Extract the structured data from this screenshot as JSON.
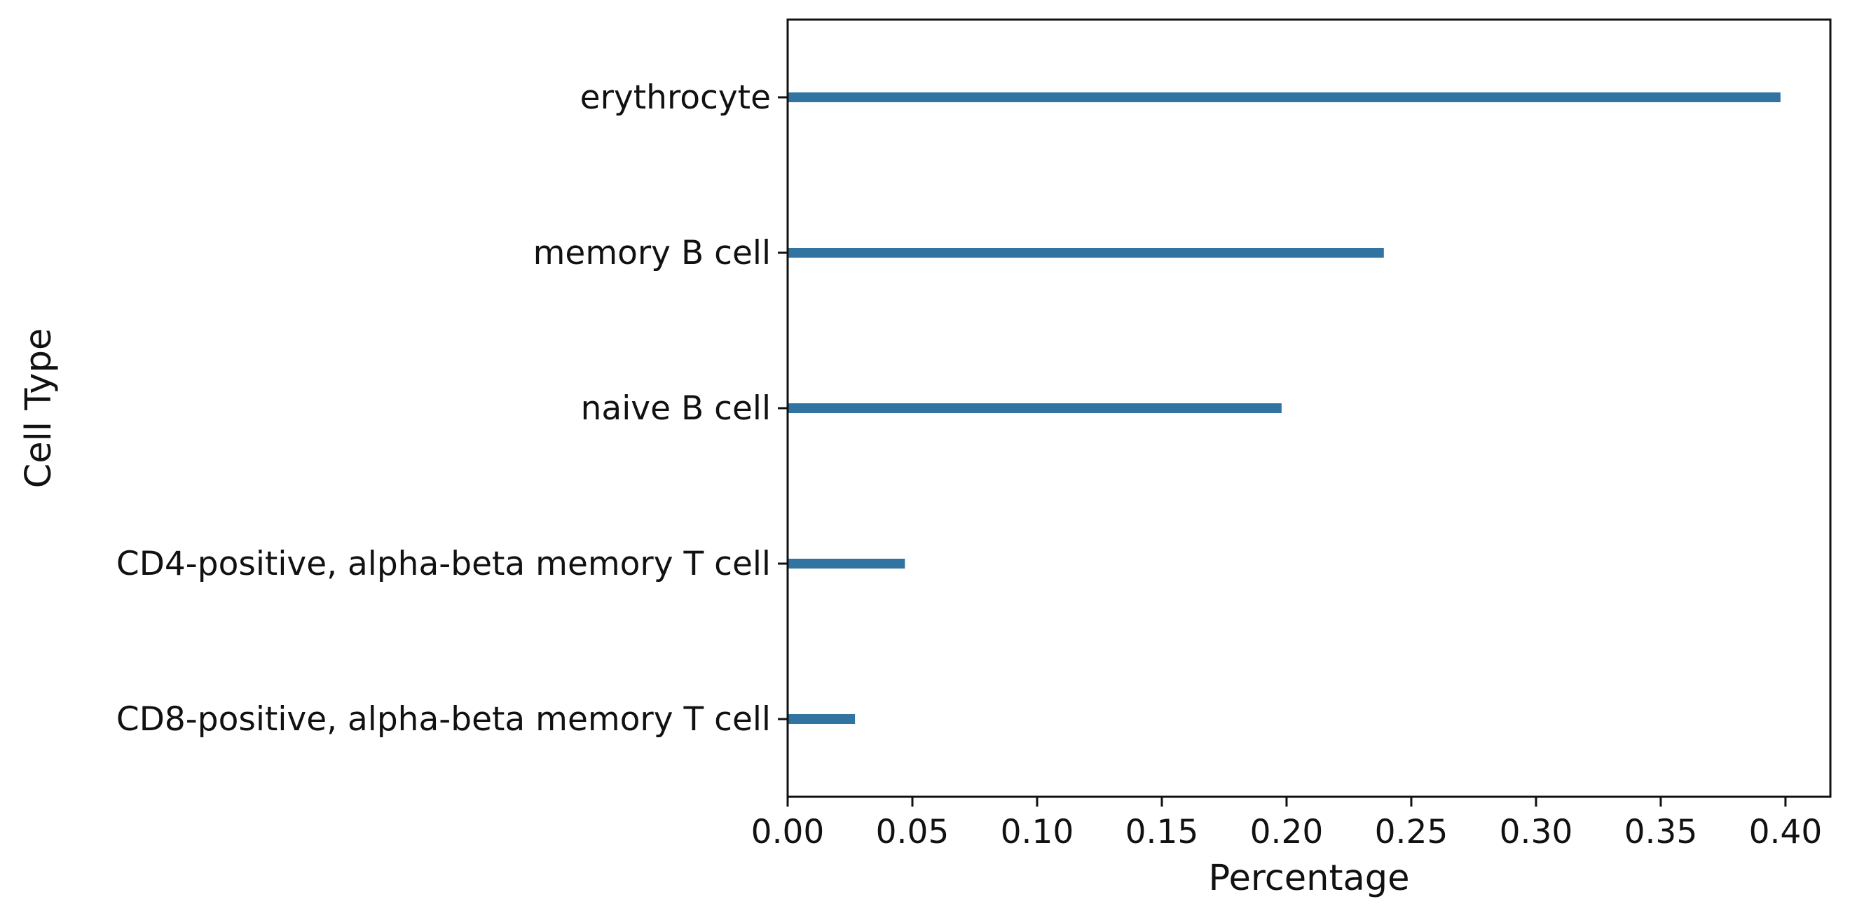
{
  "chart_data": {
    "type": "bar",
    "orientation": "horizontal",
    "title": "",
    "xlabel": "Percentage",
    "ylabel": "Cell Type",
    "categories": [
      "erythrocyte",
      "memory B cell",
      "naive B cell",
      "CD4-positive, alpha-beta memory T cell",
      "CD8-positive, alpha-beta memory T cell"
    ],
    "values": [
      0.398,
      0.239,
      0.198,
      0.047,
      0.027
    ],
    "xlim": [
      0,
      0.418
    ],
    "xticks": [
      "0.00",
      "0.05",
      "0.10",
      "0.15",
      "0.20",
      "0.25",
      "0.30",
      "0.35",
      "0.40"
    ],
    "grid": false,
    "legend": "none",
    "colors": {
      "bar": "#3274a1",
      "axis": "#111111"
    }
  }
}
